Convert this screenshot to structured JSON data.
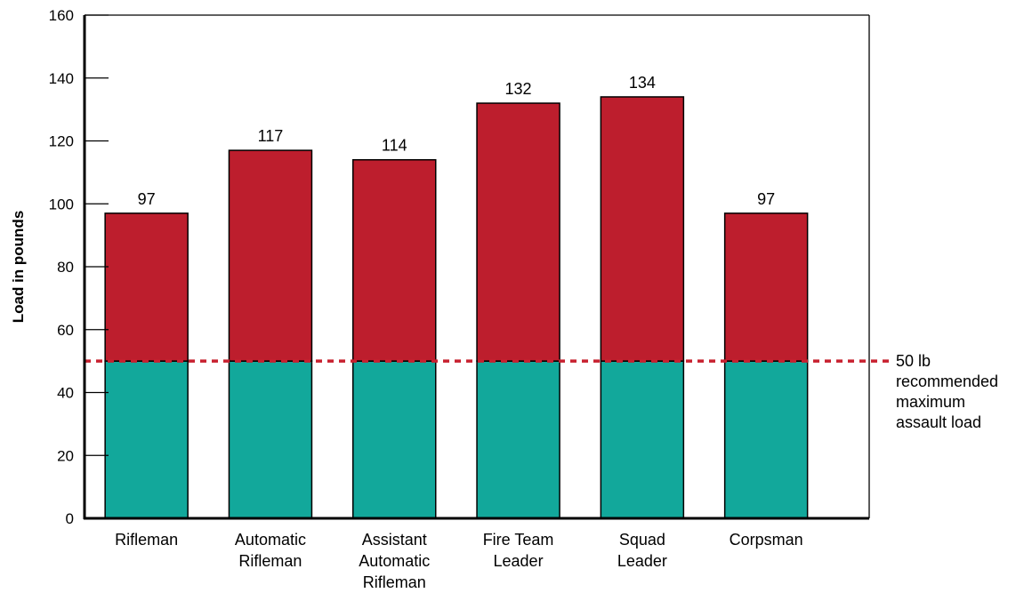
{
  "chart_data": {
    "type": "bar",
    "stacked": true,
    "categories": [
      [
        "Rifleman"
      ],
      [
        "Automatic",
        "Rifleman"
      ],
      [
        "Assistant",
        "Automatic",
        "Rifleman"
      ],
      [
        "Fire Team",
        "Leader"
      ],
      [
        "Squad",
        "Leader"
      ],
      [
        "Corpsman"
      ]
    ],
    "values": [
      97,
      117,
      114,
      132,
      134,
      97
    ],
    "data_labels": [
      "97",
      "117",
      "114",
      "132",
      "134",
      "97"
    ],
    "split_value": 50,
    "lower_color": "#12a89b",
    "upper_color": "#bd1e2d",
    "ylabel": "Load in pounds",
    "xlabel": "",
    "ylim": [
      0,
      160
    ],
    "yticks": [
      0,
      20,
      40,
      60,
      80,
      100,
      120,
      140,
      160
    ],
    "grid": false,
    "reference_line": {
      "value": 50,
      "color": "#c8202f",
      "style": "dotted",
      "label_lines": [
        "50 lb",
        "recommended",
        "maximum",
        "assault load"
      ]
    }
  }
}
